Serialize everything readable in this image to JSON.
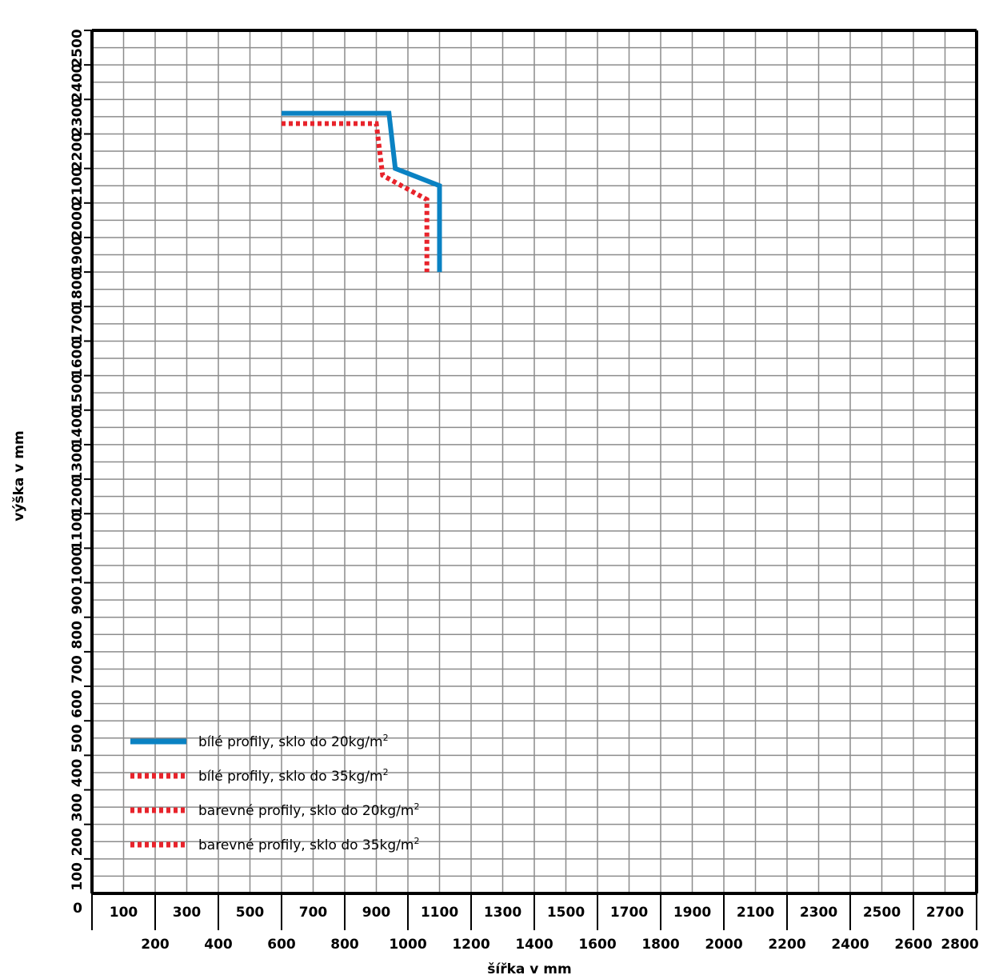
{
  "chart_data": {
    "type": "line",
    "xlabel": "šířka v mm",
    "ylabel": "výška v mm",
    "xlim": [
      0,
      2800
    ],
    "ylim": [
      0,
      2500
    ],
    "grid": true,
    "x_ticks_upper": [
      100,
      300,
      500,
      700,
      900,
      1100,
      1300,
      1500,
      1700,
      1900,
      2100,
      2300,
      2500,
      2700
    ],
    "x_ticks_lower": [
      200,
      400,
      600,
      800,
      1000,
      1200,
      1400,
      1600,
      1800,
      2000,
      2200,
      2400,
      2600,
      2800
    ],
    "y_ticks": [
      100,
      200,
      300,
      400,
      500,
      600,
      700,
      800,
      900,
      1000,
      1100,
      1200,
      1300,
      1400,
      1500,
      1600,
      1700,
      1800,
      1900,
      2000,
      2100,
      2200,
      2300,
      2400,
      2500
    ],
    "origin_label": "0",
    "legend_position": "bottom-left",
    "series": [
      {
        "name": "bílé profily, sklo do 20kg/m",
        "name_sup": "2",
        "color": "#0a82c3",
        "style": "solid",
        "x": [
          600,
          940,
          960,
          1100,
          1100
        ],
        "y": [
          2260,
          2260,
          2100,
          2050,
          1800
        ]
      },
      {
        "name": "bílé profily, sklo do 35kg/m",
        "name_sup": "2",
        "color": "#e8232b",
        "style": "dotted",
        "x": [
          600,
          900,
          920,
          1060,
          1060
        ],
        "y": [
          2230,
          2230,
          2080,
          2010,
          1800
        ]
      },
      {
        "name": "barevné profily, sklo do 20kg/m",
        "name_sup": "2",
        "color": "#e8232b",
        "style": "dotted"
      },
      {
        "name": "barevné profily, sklo do 35kg/m",
        "name_sup": "2",
        "color": "#e8232b",
        "style": "dotted"
      }
    ]
  }
}
